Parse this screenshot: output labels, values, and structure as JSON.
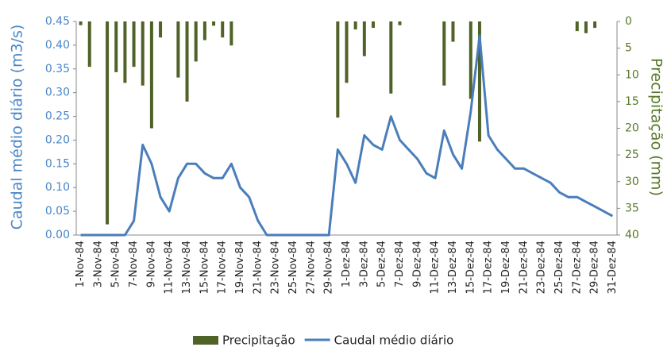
{
  "chart_data": {
    "type": "combo",
    "categories": [
      "1-Nov-84",
      null,
      "3-Nov-84",
      null,
      "5-Nov-84",
      null,
      "7-Nov-84",
      null,
      "9-Nov-84",
      null,
      "11-Nov-84",
      null,
      "13-Nov-84",
      null,
      "15-Nov-84",
      null,
      "17-Nov-84",
      null,
      "19-Nov-84",
      null,
      "21-Nov-84",
      null,
      "23-Nov-84",
      null,
      "25-Nov-84",
      null,
      "27-Nov-84",
      null,
      "29-Nov-84",
      null,
      "1-Dez-84",
      null,
      "3-Dez-84",
      null,
      "5-Dez-84",
      null,
      "7-Dez-84",
      null,
      "9-Dez-84",
      null,
      "11-Dez-84",
      null,
      "13-Dez-84",
      null,
      "15-Dez-84",
      null,
      "17-Dez-84",
      null,
      "19-Dez-84",
      null,
      "21-Dez-84",
      null,
      "23-Dez-84",
      null,
      "25-Dez-84",
      null,
      "27-Dez-84",
      null,
      "29-Dez-84",
      null,
      "31-Dez-84"
    ],
    "series": [
      {
        "name": "Precipitação",
        "type": "bar",
        "axis": "y2",
        "color": "#4f6228",
        "values": [
          0.7,
          8.5,
          0,
          38,
          9.5,
          11.5,
          8.5,
          12,
          20,
          3,
          0,
          10.5,
          15,
          7.5,
          3.5,
          0.8,
          3,
          4.5,
          0,
          0,
          0,
          0,
          0,
          0,
          0,
          0,
          0,
          0,
          0,
          18,
          11.5,
          1.5,
          6.5,
          1.2,
          0,
          13.5,
          0.7,
          0,
          0,
          0,
          0,
          12,
          3.8,
          0,
          14.5,
          22.5,
          0,
          0,
          0,
          0,
          0,
          0,
          0,
          0,
          0,
          0,
          1.8,
          2.2,
          1.2,
          0,
          0
        ]
      },
      {
        "name": "Caudal médio diário",
        "type": "line",
        "color": "#4a7ebb",
        "values": [
          0,
          0,
          0,
          0,
          0,
          0,
          0.03,
          0.19,
          0.15,
          0.08,
          0.05,
          0.12,
          0.15,
          0.15,
          0.13,
          0.12,
          0.12,
          0.15,
          0.1,
          0.08,
          0.03,
          0,
          0,
          0,
          0,
          0,
          0,
          0,
          0,
          0.18,
          0.15,
          0.11,
          0.21,
          0.19,
          0.18,
          0.25,
          0.2,
          0.18,
          0.16,
          0.13,
          0.12,
          0.22,
          0.17,
          0.14,
          0.26,
          0.42,
          0.21,
          0.18,
          0.16,
          0.14,
          0.14,
          0.13,
          0.12,
          0.11,
          0.09,
          0.08,
          0.08,
          0.07,
          0.06,
          0.05,
          0.04
        ]
      }
    ],
    "y_label": "Caudal médio diário (m3/s)",
    "y2_label": "Precipitação (mm)",
    "ylim": [
      0,
      0.45
    ],
    "yticks": [
      {
        "value": 0,
        "label": "0.00"
      },
      {
        "value": 0.05,
        "label": "0.05"
      },
      {
        "value": 0.1,
        "label": "0.10"
      },
      {
        "value": 0.15,
        "label": "0.15"
      },
      {
        "value": 0.2,
        "label": "0.20"
      },
      {
        "value": 0.25,
        "label": "0.25"
      },
      {
        "value": 0.3,
        "label": "0.30"
      },
      {
        "value": 0.35,
        "label": "0.35"
      },
      {
        "value": 0.4,
        "label": "0.40"
      },
      {
        "value": 0.45,
        "label": "0.45"
      }
    ],
    "y2lim": [
      0,
      40
    ],
    "y2ticks": [
      0,
      5,
      10,
      15,
      20,
      25,
      30,
      35,
      40
    ],
    "y2_reversed": true,
    "legend": "bottom"
  }
}
